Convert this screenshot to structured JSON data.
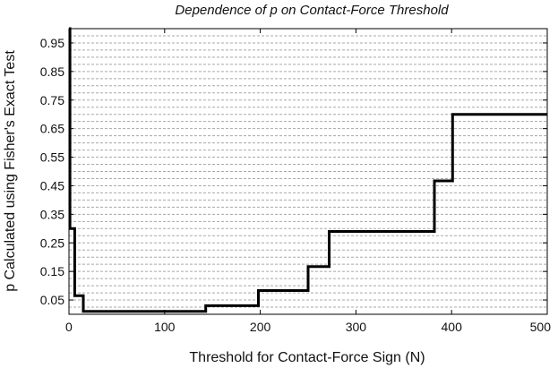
{
  "chart_data": {
    "type": "line",
    "title": "Dependence of p on Contact-Force Threshold",
    "xlabel": "Threshold for Contact-Force Sign (N)",
    "ylabel": "p Calculated using Fisher's Exact Test",
    "xlim": [
      0,
      500
    ],
    "ylim": [
      0,
      1
    ],
    "xticks": [
      0,
      100,
      200,
      300,
      400,
      500
    ],
    "xtick_labels": [
      "0",
      "100",
      "200",
      "300",
      "400",
      "500"
    ],
    "yticks": [
      0.05,
      0.15,
      0.25,
      0.35,
      0.45,
      0.55,
      0.65,
      0.75,
      0.85,
      0.95
    ],
    "ytick_labels": [
      "0.05",
      "0.15",
      "0.25",
      "0.35",
      "0.45",
      "0.55",
      "0.65",
      "0.75",
      "0.85",
      "0.95"
    ],
    "minor_grid_step": 0.025,
    "grid": "horizontal dashed",
    "line_color": "#000000",
    "series": [
      {
        "step": "post",
        "x": [
          0,
          1,
          6,
          15,
          143,
          198,
          250,
          272,
          382,
          401,
          500
        ],
        "y": [
          1.0,
          0.3,
          0.065,
          0.01,
          0.03,
          0.083,
          0.167,
          0.29,
          0.467,
          0.7,
          0.7
        ]
      }
    ]
  }
}
